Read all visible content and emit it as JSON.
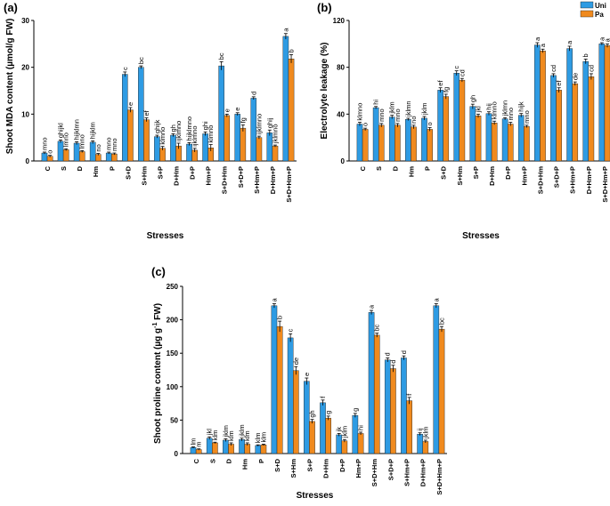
{
  "colors": {
    "uni": "#2E9BE3",
    "pa": "#F08A1E"
  },
  "legend": {
    "uni": "Uni",
    "pa": "Pa"
  },
  "chart_data": [
    {
      "id": "a",
      "panel_label": "(a)",
      "type": "bar",
      "xlabel": "Stresses",
      "ylabel": "Shoot MDA content (µmol/g FW)",
      "ylim": [
        0,
        30
      ],
      "yticks": [
        "0",
        "10",
        "20",
        "30"
      ],
      "categories": [
        "C",
        "S",
        "D",
        "Hm",
        "P",
        "S+D",
        "S+Hm",
        "S+P",
        "D+Hm",
        "D+P",
        "Hm+P",
        "S+D+Hm",
        "S+D+P",
        "S+Hm+P",
        "D+Hm+P",
        "S+D+Hm+P"
      ],
      "series": [
        {
          "name": "Uni",
          "values": [
            1.7,
            4.2,
            3.8,
            4.0,
            1.7,
            18.5,
            20.0,
            5.2,
            5.5,
            3.6,
            5.8,
            20.3,
            10.0,
            13.4,
            6.0,
            26.6
          ],
          "errors": [
            0.2,
            0.3,
            0.3,
            0.3,
            0.2,
            0.5,
            0.3,
            0.3,
            0.3,
            0.3,
            0.4,
            0.9,
            0.3,
            0.3,
            0.6,
            0.6
          ],
          "labels": [
            "mno",
            "ghijkl",
            "hijklmn",
            "hijklm",
            "mno",
            "c",
            "bc",
            "ghijk",
            "gh",
            "hijklmno",
            "ghi",
            "bc",
            "e",
            "d",
            "ghij",
            "a"
          ]
        },
        {
          "name": "Pa",
          "values": [
            1.0,
            2.4,
            2.0,
            1.4,
            1.5,
            10.9,
            8.8,
            2.7,
            3.2,
            2.3,
            2.8,
            9.7,
            7.0,
            5.0,
            3.2,
            21.8
          ],
          "errors": [
            0.2,
            0.2,
            0.2,
            0.2,
            0.2,
            0.5,
            0.4,
            0.4,
            0.6,
            0.4,
            0.7,
            0.3,
            0.7,
            0.3,
            0.2,
            0.9
          ],
          "labels": [
            "o",
            "lmno",
            "lmno",
            "no",
            "mno",
            "e",
            "ef",
            "klmno",
            "ijklmno",
            "ijklmno",
            "klmno",
            "e",
            "fg",
            "ijklmno",
            "jklmno",
            "b"
          ]
        }
      ]
    },
    {
      "id": "b",
      "panel_label": "(b)",
      "type": "bar",
      "xlabel": "Stresses",
      "ylabel": "Electrolyte leakage (%)",
      "ylim": [
        0,
        120
      ],
      "yticks": [
        "0",
        "40",
        "80",
        "120"
      ],
      "categories": [
        "C",
        "S",
        "D",
        "Hm",
        "P",
        "S+D",
        "S+Hm",
        "S+P",
        "D+Hm",
        "D+P",
        "Hm+P",
        "S+D+Hm",
        "S+D+P",
        "S+Hm+P",
        "D+Hm+P",
        "S+D+Hm+P"
      ],
      "series": [
        {
          "name": "Uni",
          "values": [
            31.5,
            45.5,
            37.5,
            35.5,
            36.5,
            60.5,
            75.0,
            46.5,
            40.5,
            36.0,
            39.0,
            99.0,
            73.0,
            96.0,
            85.0,
            100.0
          ],
          "errors": [
            1.5,
            1.0,
            1.5,
            1.0,
            1.5,
            2.0,
            2.0,
            2.0,
            1.5,
            1.0,
            1.5,
            2.0,
            1.5,
            2.0,
            2.0,
            1.0
          ],
          "labels": [
            "klmno",
            "hi",
            "jklm",
            "jklmn",
            "jklm",
            "ef",
            "c",
            "gh",
            "hij",
            "jklmn",
            "hijk",
            "a",
            "cd",
            "a",
            "b",
            "a"
          ]
        },
        {
          "name": "Pa",
          "values": [
            27.0,
            30.5,
            30.5,
            29.0,
            27.0,
            55.0,
            69.0,
            38.5,
            32.5,
            31.5,
            29.5,
            94.0,
            60.5,
            66.0,
            72.0,
            98.5
          ],
          "errors": [
            1.0,
            1.5,
            1.5,
            1.5,
            1.5,
            2.0,
            1.5,
            1.5,
            1.5,
            1.5,
            1.0,
            1.5,
            2.0,
            1.5,
            2.5,
            1.5
          ],
          "labels": [
            "o",
            "mno",
            "mno",
            "no",
            "o",
            "fg",
            "cd",
            "jkl",
            "klmno",
            "mno",
            "mno",
            "a",
            "ef",
            "de",
            "cd",
            "a"
          ]
        }
      ]
    },
    {
      "id": "c",
      "panel_label": "(c)",
      "type": "bar",
      "xlabel": "Stresses",
      "ylabel": "Shoot proline content (µg g-1 FW)",
      "ylim": [
        0,
        250
      ],
      "yticks": [
        "0",
        "50",
        "100",
        "150",
        "200",
        "250"
      ],
      "categories": [
        "C",
        "S",
        "D",
        "Hm",
        "P",
        "S+D",
        "S+Hm",
        "S+P",
        "D+Hm",
        "D+P",
        "Hm+P",
        "S+D+Hm",
        "S+D+P",
        "S+Hm+P",
        "D+Hm+P",
        "S+D+Hm+P"
      ],
      "series": [
        {
          "name": "Uni",
          "values": [
            9,
            23,
            20,
            21,
            12,
            221,
            173,
            108,
            76,
            28,
            57,
            211,
            140,
            143,
            29,
            221
          ],
          "errors": [
            1,
            2,
            2,
            2,
            1,
            3,
            6,
            5,
            4,
            2,
            3,
            3,
            3,
            3,
            2,
            3
          ],
          "labels": [
            "lm",
            "jkl",
            "jklm",
            "jklm",
            "klm",
            "a",
            "c",
            "e",
            "f",
            "jk",
            "g",
            "a",
            "d",
            "d",
            "ij",
            "a"
          ]
        },
        {
          "name": "Pa",
          "values": [
            6,
            16,
            14,
            14,
            13,
            190,
            124,
            48,
            53,
            19,
            30,
            177,
            127,
            79,
            18,
            186
          ],
          "errors": [
            1,
            1,
            2,
            2,
            1,
            8,
            6,
            3,
            3,
            2,
            2,
            3,
            5,
            5,
            2,
            4
          ],
          "labels": [
            "m",
            "klm",
            "klm",
            "klm",
            "klm",
            "b",
            "de",
            "gh",
            "g",
            "jklm",
            "hi",
            "bc",
            "d",
            "f",
            "jklm",
            "bc"
          ]
        }
      ]
    }
  ]
}
